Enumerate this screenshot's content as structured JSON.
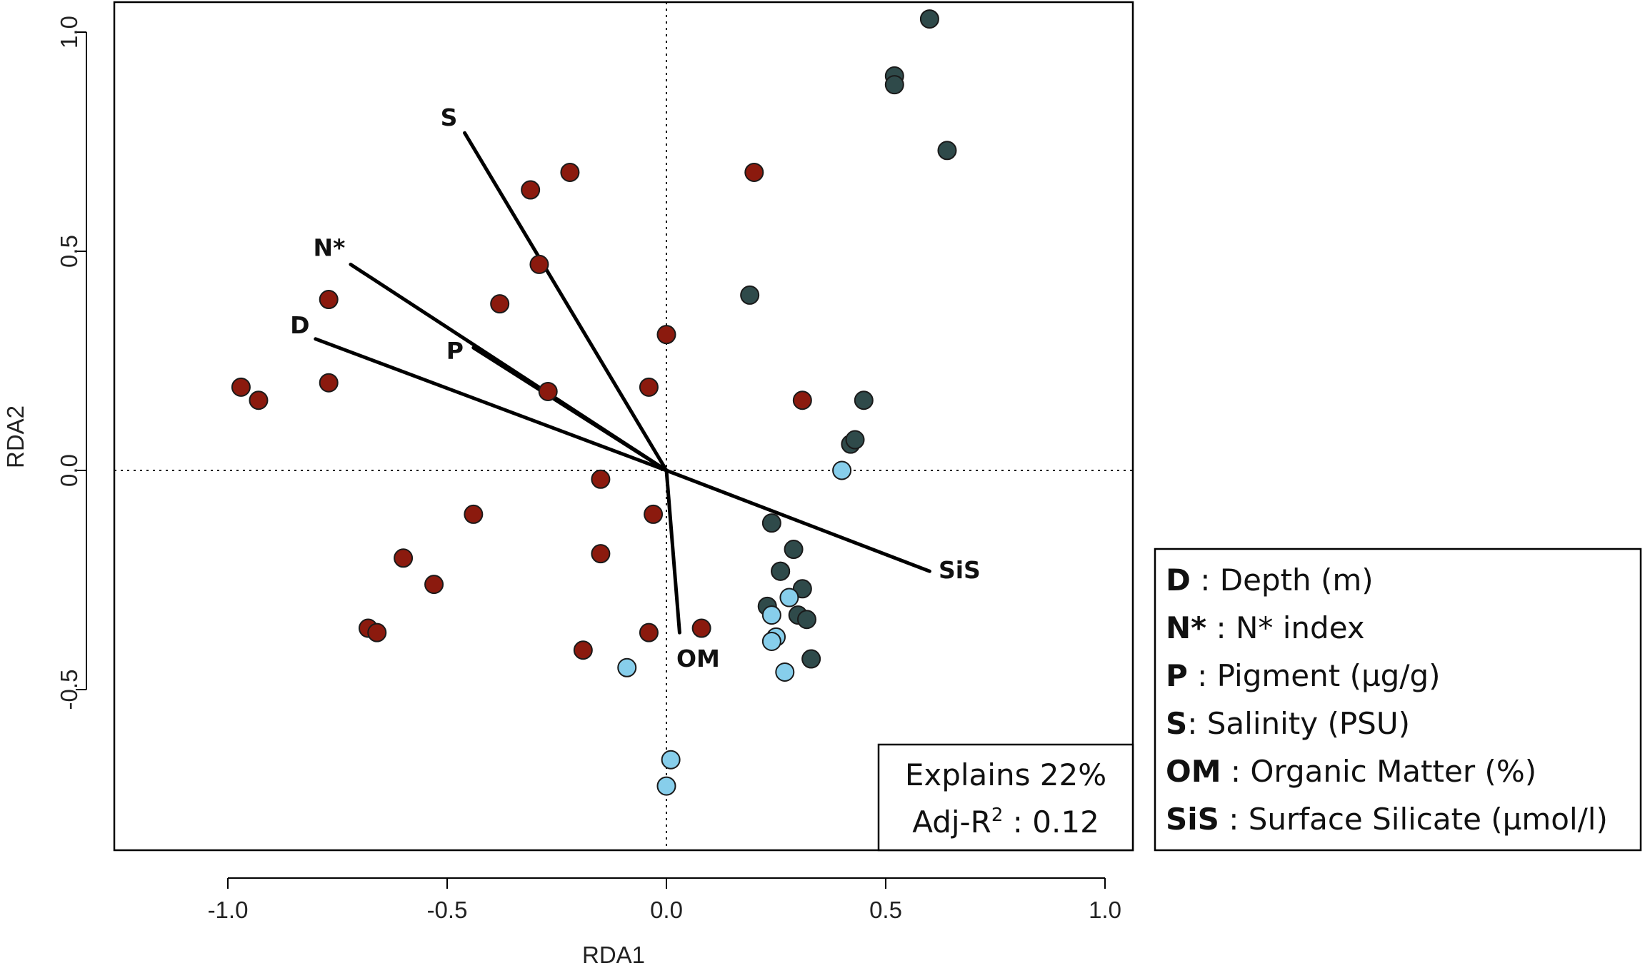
{
  "chart_data": {
    "type": "scatter",
    "title": "",
    "xlabel": "RDA1",
    "ylabel": "RDA2",
    "xlim": [
      -1.25,
      1.07
    ],
    "ylim": [
      -0.87,
      1.07
    ],
    "x_ticks": [
      "-1.0",
      "-0.5",
      "0.0",
      "0.5",
      "1.0"
    ],
    "x_tick_values": [
      -1.0,
      -0.5,
      0.0,
      0.5,
      1.0
    ],
    "y_ticks": [
      "-0.5",
      "0.0",
      "0.5",
      "1.0"
    ],
    "y_tick_values": [
      -0.5,
      0.0,
      0.5,
      1.0
    ],
    "reference_lines": {
      "x": 0,
      "y": 0,
      "style": "dotted"
    },
    "colors": {
      "red": "#8b1a0e",
      "dark": "#2f4a4a",
      "light": "#87ceeb"
    },
    "series": [
      {
        "name": "red",
        "color": "#8b1a0e",
        "points": [
          [
            -0.97,
            0.19
          ],
          [
            -0.93,
            0.16
          ],
          [
            -0.77,
            0.39
          ],
          [
            -0.77,
            0.2
          ],
          [
            -0.6,
            -0.2
          ],
          [
            -0.53,
            -0.26
          ],
          [
            -0.68,
            -0.36
          ],
          [
            -0.66,
            -0.37
          ],
          [
            -0.44,
            -0.1
          ],
          [
            -0.38,
            0.38
          ],
          [
            -0.31,
            0.64
          ],
          [
            -0.22,
            0.68
          ],
          [
            -0.29,
            0.47
          ],
          [
            -0.27,
            0.18
          ],
          [
            -0.15,
            -0.02
          ],
          [
            -0.15,
            -0.19
          ],
          [
            -0.19,
            -0.41
          ],
          [
            -0.04,
            0.19
          ],
          [
            0.0,
            0.31
          ],
          [
            -0.03,
            -0.1
          ],
          [
            -0.04,
            -0.37
          ],
          [
            0.08,
            -0.36
          ],
          [
            0.2,
            0.68
          ],
          [
            0.31,
            0.16
          ]
        ]
      },
      {
        "name": "dark",
        "color": "#2f4a4a",
        "points": [
          [
            0.6,
            1.03
          ],
          [
            0.52,
            0.9
          ],
          [
            0.52,
            0.88
          ],
          [
            0.64,
            0.73
          ],
          [
            0.19,
            0.4
          ],
          [
            0.45,
            0.16
          ],
          [
            0.42,
            0.06
          ],
          [
            0.43,
            0.07
          ],
          [
            0.24,
            -0.12
          ],
          [
            0.29,
            -0.18
          ],
          [
            0.26,
            -0.23
          ],
          [
            0.26,
            -0.23
          ],
          [
            0.31,
            -0.27
          ],
          [
            0.23,
            -0.31
          ],
          [
            0.3,
            -0.33
          ],
          [
            0.32,
            -0.34
          ],
          [
            0.33,
            -0.43
          ]
        ]
      },
      {
        "name": "light",
        "color": "#87ceeb",
        "points": [
          [
            0.4,
            0.0
          ],
          [
            0.28,
            -0.29
          ],
          [
            0.24,
            -0.33
          ],
          [
            0.25,
            -0.38
          ],
          [
            0.24,
            -0.39
          ],
          [
            0.27,
            -0.46
          ],
          [
            -0.09,
            -0.45
          ],
          [
            0.01,
            -0.66
          ],
          [
            0.0,
            -0.72
          ]
        ]
      }
    ],
    "biplot_arrows": [
      {
        "label": "S",
        "x": -0.46,
        "y": 0.77
      },
      {
        "label": "N*",
        "x": -0.72,
        "y": 0.47
      },
      {
        "label": "D",
        "x": -0.8,
        "y": 0.3
      },
      {
        "label": "P",
        "x": -0.44,
        "y": 0.28
      },
      {
        "label": "SiS",
        "x": 0.6,
        "y": -0.23
      },
      {
        "label": "OM",
        "x": 0.03,
        "y": -0.37
      }
    ],
    "annotation": {
      "line1": "Explains 22%",
      "line2_prefix": "Adj-R",
      "line2_sup": "2",
      "line2_suffix": " : 0.12"
    },
    "legend": [
      {
        "code": "D",
        "text": " : Depth (m)"
      },
      {
        "code": "N*",
        "text": " : N* index"
      },
      {
        "code": "P",
        "text": " : Pigment (µg/g)"
      },
      {
        "code": "S",
        "text": ": Salinity (PSU)"
      },
      {
        "code": "OM",
        "text": " : Organic Matter (%)"
      },
      {
        "code": "SiS",
        "text": " : Surface Silicate (µmol/l)"
      }
    ]
  }
}
